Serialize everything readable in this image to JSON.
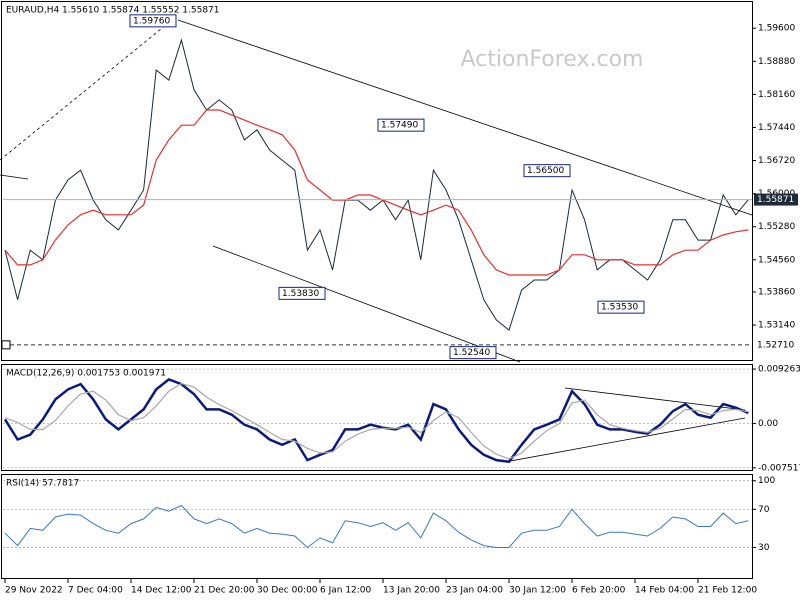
{
  "chart_data": [
    {
      "type": "line",
      "title": "EURAUD,H4 1.55610 1.55874 1.55552 1.55871",
      "watermark": "ActionForex.com",
      "ylim": [
        1.5238,
        1.6017
      ],
      "yticks": [
        {
          "value": 1.596,
          "label": "1.59600"
        },
        {
          "value": 1.5888,
          "label": "1.58880"
        },
        {
          "value": 1.5816,
          "label": "1.58160"
        },
        {
          "value": 1.5744,
          "label": "1.57440"
        },
        {
          "value": 1.5672,
          "label": "1.56720"
        },
        {
          "value": 1.56,
          "label": "1.56000"
        },
        {
          "value": 1.5528,
          "label": "1.55280"
        },
        {
          "value": 1.5456,
          "label": "1.54560"
        },
        {
          "value": 1.5386,
          "label": "1.53860"
        },
        {
          "value": 1.5314,
          "label": "1.53140"
        }
      ],
      "current": {
        "value": 1.55871,
        "label": "1.55871"
      },
      "level": {
        "value": 1.5271,
        "label": "1.52710"
      },
      "annotations": [
        {
          "value": 1.5976,
          "label": "1.59760"
        },
        {
          "value": 1.5749,
          "label": "1.57490"
        },
        {
          "value": 1.565,
          "label": "1.56500"
        },
        {
          "value": 1.5383,
          "label": "1.53830"
        },
        {
          "value": 1.5254,
          "label": "1.52540"
        },
        {
          "value": 1.5353,
          "label": "1.53530"
        }
      ],
      "series": [
        {
          "color": "#1e2a38",
          "values": [
            1.5477,
            1.5369,
            1.5477,
            1.5456,
            1.5586,
            1.563,
            1.5651,
            1.5586,
            1.5543,
            1.5521,
            1.5564,
            1.5608,
            1.5869,
            1.5847,
            1.5934,
            1.5826,
            1.5782,
            1.5804,
            1.5782,
            1.5717,
            1.5739,
            1.5695,
            1.5673,
            1.5651,
            1.5477,
            1.5521,
            1.5434,
            1.5586,
            1.5586,
            1.5564,
            1.5586,
            1.5543,
            1.5586,
            1.5456,
            1.5651,
            1.5608,
            1.5543,
            1.5456,
            1.5369,
            1.5325,
            1.5303,
            1.539,
            1.5412,
            1.5412,
            1.5434,
            1.5608,
            1.5543,
            1.5434,
            1.5456,
            1.5456,
            1.5434,
            1.5412,
            1.5456,
            1.5543,
            1.5543,
            1.5499,
            1.5499,
            1.5597,
            1.5554,
            1.5587
          ]
        },
        {
          "color": "#e03030",
          "values": [
            1.5477,
            1.5445,
            1.5445,
            1.5456,
            1.5499,
            1.5532,
            1.5554,
            1.5564,
            1.5554,
            1.5554,
            1.5554,
            1.5575,
            1.5673,
            1.5717,
            1.5749,
            1.5749,
            1.5782,
            1.5782,
            1.5771,
            1.576,
            1.5749,
            1.5739,
            1.5728,
            1.5695,
            1.563,
            1.5608,
            1.5586,
            1.5586,
            1.5597,
            1.5597,
            1.5586,
            1.5575,
            1.5564,
            1.5554,
            1.5564,
            1.5575,
            1.5564,
            1.5521,
            1.5467,
            1.5434,
            1.5423,
            1.5423,
            1.5423,
            1.5423,
            1.5434,
            1.5467,
            1.5467,
            1.5456,
            1.5456,
            1.5456,
            1.5445,
            1.5445,
            1.5445,
            1.5467,
            1.5477,
            1.5477,
            1.5499,
            1.551,
            1.5517,
            1.5521
          ]
        }
      ]
    },
    {
      "type": "line",
      "title": "MACD(12,26,9) 0.001753 0.001971",
      "ylim": [
        -0.00789,
        0.00995
      ],
      "yticks": [
        0.009263,
        {
          "value": 0,
          "label": "0.00"
        },
        -0.007517
      ],
      "grid": true,
      "series": [
        {
          "color": "#0c1a7a",
          "values": [
            0.0007,
            -0.0027,
            -0.0019,
            0.0007,
            0.0041,
            0.0058,
            0.0067,
            0.0041,
            0.0007,
            -0.001,
            0.0007,
            0.0024,
            0.0058,
            0.0075,
            0.0067,
            0.005,
            0.0024,
            0.0024,
            0.0015,
            -0.0002,
            -0.001,
            -0.0027,
            -0.0036,
            -0.0027,
            -0.0062,
            -0.0053,
            -0.0045,
            -0.001,
            -0.001,
            -0.0002,
            -0.0007,
            -0.001,
            -0.0002,
            -0.0027,
            0.0033,
            0.0024,
            -0.001,
            -0.0036,
            -0.0053,
            -0.0062,
            -0.0065,
            -0.0036,
            -0.001,
            -0.0002,
            0.0007,
            0.0055,
            0.0033,
            -0.0002,
            -0.001,
            -0.001,
            -0.0014,
            -0.0017,
            -0.0002,
            0.0021,
            0.0033,
            0.0015,
            0.001,
            0.0033,
            0.0027,
            0.0018
          ]
        },
        {
          "color": "#a8a8a8",
          "values": [
            0.001,
            0.0002,
            -0.001,
            -0.001,
            0.0005,
            0.003,
            0.005,
            0.0055,
            0.004,
            0.0015,
            0.0005,
            0.001,
            0.003,
            0.0055,
            0.0068,
            0.0062,
            0.0045,
            0.0032,
            0.0022,
            0.001,
            -0.0002,
            -0.0015,
            -0.0027,
            -0.003,
            -0.0042,
            -0.005,
            -0.0048,
            -0.003,
            -0.0018,
            -0.001,
            -0.0008,
            -0.0008,
            -0.0006,
            -0.0015,
            0.0005,
            0.002,
            0.001,
            -0.0015,
            -0.0038,
            -0.0052,
            -0.006,
            -0.005,
            -0.003,
            -0.0012,
            0,
            0.0035,
            0.004,
            0.0015,
            -0.0002,
            -0.0008,
            -0.0012,
            -0.0015,
            -0.0008,
            0.0008,
            0.0024,
            0.0022,
            0.0015,
            0.0022,
            0.0024,
            0.002
          ]
        }
      ]
    },
    {
      "type": "line",
      "title": "RSI(14) 57.7817",
      "ylim": [
        -2,
        106
      ],
      "yticks": [
        100,
        70,
        30
      ],
      "grid": true,
      "categories": [
        "29 Nov 2022",
        null,
        null,
        null,
        null,
        "7 Dec 04:00",
        null,
        null,
        null,
        null,
        "14 Dec 12:00",
        null,
        null,
        null,
        null,
        "21 Dec 20:00",
        null,
        null,
        null,
        null,
        "30 Dec 00:00",
        null,
        null,
        null,
        null,
        "6 Jan 12:00",
        null,
        null,
        null,
        null,
        "13 Jan 20:00",
        null,
        null,
        null,
        null,
        "23 Jan 04:00",
        null,
        null,
        null,
        null,
        "30 Jan 12:00",
        null,
        null,
        null,
        null,
        "6 Feb 20:00",
        null,
        null,
        null,
        null,
        "14 Feb 04:00",
        null,
        null,
        null,
        null,
        "21 Feb 12:00",
        null,
        null,
        null,
        null
      ],
      "series": [
        {
          "color": "#3a78c8",
          "values": [
            45,
            32,
            50,
            48,
            62,
            65,
            64,
            55,
            48,
            45,
            55,
            60,
            72,
            68,
            74,
            60,
            55,
            60,
            55,
            45,
            50,
            45,
            44,
            42,
            30,
            40,
            35,
            58,
            56,
            52,
            56,
            48,
            56,
            40,
            66,
            58,
            46,
            38,
            32,
            30,
            30,
            45,
            48,
            48,
            52,
            70,
            55,
            42,
            46,
            46,
            44,
            42,
            50,
            62,
            60,
            52,
            52,
            66,
            55,
            58
          ]
        }
      ]
    }
  ]
}
